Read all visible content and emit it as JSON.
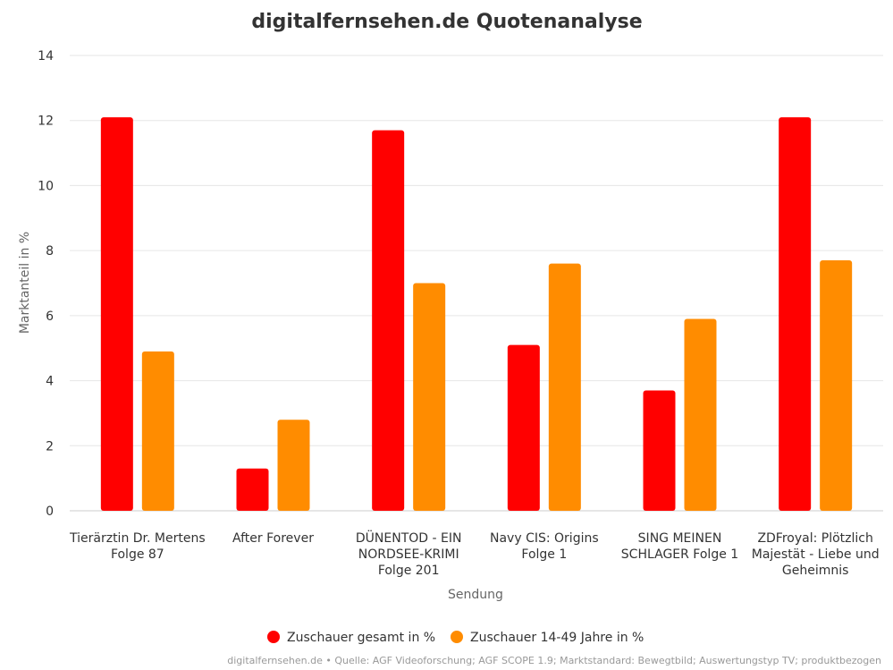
{
  "chart_data": {
    "type": "bar",
    "title": "digitalfernsehen.de Quotenanalyse",
    "xlabel": "Sendung",
    "ylabel": "Marktanteil in %",
    "ylim": [
      0,
      14
    ],
    "yticks": [
      0,
      2,
      4,
      6,
      8,
      10,
      12,
      14
    ],
    "grid": true,
    "legend_position": "bottom",
    "categories": [
      [
        "Tierärztin Dr. Mertens",
        "Folge 87"
      ],
      [
        "After Forever"
      ],
      [
        "DÜNENTOD - EIN",
        "NORDSEE-KRIMI",
        "Folge 201"
      ],
      [
        "Navy CIS: Origins",
        "Folge 1"
      ],
      [
        "SING MEINEN",
        "SCHLAGER Folge 1"
      ],
      [
        "ZDFroyal: Plötzlich",
        "Majestät - Liebe und",
        "Geheimnis"
      ]
    ],
    "series": [
      {
        "name": "Zuschauer gesamt in %",
        "color": "#ff0000",
        "values": [
          12.1,
          1.3,
          11.7,
          5.1,
          3.7,
          12.1
        ]
      },
      {
        "name": "Zuschauer 14-49 Jahre in %",
        "color": "#ff8c00",
        "values": [
          4.9,
          2.8,
          7.0,
          7.6,
          5.9,
          7.7
        ]
      }
    ],
    "credits": "digitalfernsehen.de • Quelle: AGF Videoforschung; AGF SCOPE 1.9; Marktstandard: Bewegtbild; Auswertungstyp TV; produktbezogen"
  }
}
